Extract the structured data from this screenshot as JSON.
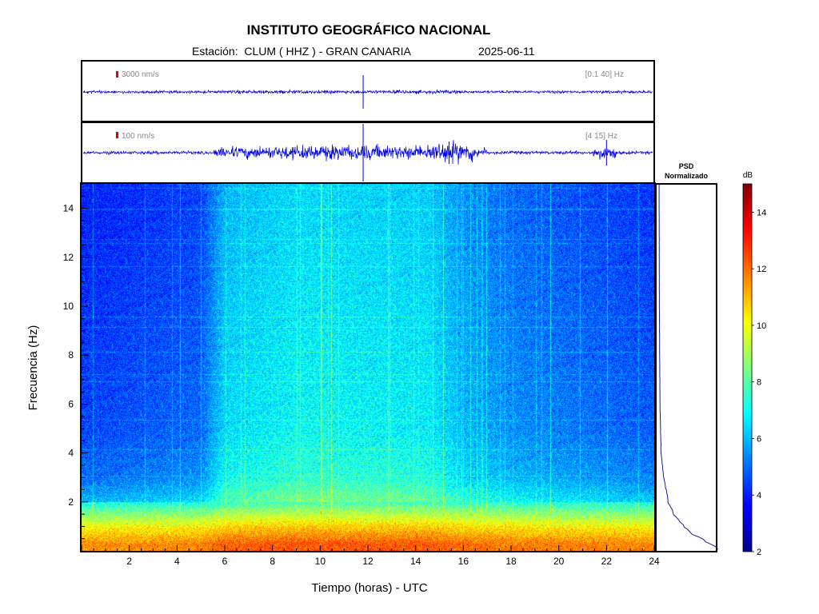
{
  "header": {
    "title": "INSTITUTO GEOGRÁFICO NACIONAL",
    "station": "Estación:  CLUM ( HHZ ) - GRAN CANARIA",
    "date": "2025-06-11"
  },
  "trace_panels": [
    {
      "scale_label": "3000 nm/s",
      "band_label": "[0.1 40] Hz"
    },
    {
      "scale_label": "100 nm/s",
      "band_label": "[4 15] Hz"
    }
  ],
  "psd_panel": {
    "title_line1": "PSD",
    "title_line2": "Normalizado"
  },
  "colorbar": {
    "unit": "dB",
    "min": 2,
    "max": 15,
    "ticks": [
      "2",
      "4",
      "6",
      "8",
      "10",
      "12",
      "14"
    ],
    "colors": [
      "#00008f",
      "#0000ff",
      "#007fff",
      "#00ffff",
      "#7fff7f",
      "#ffff00",
      "#ff7f00",
      "#ff0000",
      "#7f0000"
    ]
  },
  "chart_data": {
    "type": "heatmap",
    "xlabel": "Tiempo (horas) - UTC",
    "ylabel": "Frecuencia  (Hz)",
    "xlim": [
      0,
      24
    ],
    "ylim": [
      0,
      15
    ],
    "x_ticks": [
      "2",
      "4",
      "6",
      "8",
      "10",
      "12",
      "14",
      "16",
      "18",
      "20",
      "22",
      "24"
    ],
    "y_ticks": [
      "2",
      "4",
      "6",
      "8",
      "10",
      "12",
      "14"
    ],
    "level_by_frequency_dB": [
      {
        "hz": 0.3,
        "db": 12
      },
      {
        "hz": 1,
        "db": 10.5
      },
      {
        "hz": 1.5,
        "db": 9
      },
      {
        "hz": 2,
        "db": 7.5
      },
      {
        "hz": 3,
        "db": 6.5
      },
      {
        "hz": 5,
        "db": 6
      },
      {
        "hz": 14,
        "db": 5.5
      }
    ],
    "level_by_time_offset_dB": [
      {
        "h": 0,
        "db": -1.5
      },
      {
        "h": 5,
        "db": -1
      },
      {
        "h": 6,
        "db": 0.5
      },
      {
        "h": 9,
        "db": 1
      },
      {
        "h": 14.5,
        "db": 0.8
      },
      {
        "h": 16,
        "db": 0
      },
      {
        "h": 18,
        "db": -0.5
      },
      {
        "h": 24,
        "db": -1.2
      }
    ],
    "psd_curve": [
      {
        "hz": 0.2,
        "v": 1.0
      },
      {
        "hz": 0.5,
        "v": 0.75
      },
      {
        "hz": 1,
        "v": 0.45
      },
      {
        "hz": 1.5,
        "v": 0.28
      },
      {
        "hz": 2,
        "v": 0.18
      },
      {
        "hz": 3,
        "v": 0.1
      },
      {
        "hz": 4,
        "v": 0.05
      },
      {
        "hz": 6,
        "v": 0.03
      },
      {
        "hz": 10,
        "v": 0.02
      },
      {
        "hz": 15,
        "v": 0.015
      }
    ]
  }
}
